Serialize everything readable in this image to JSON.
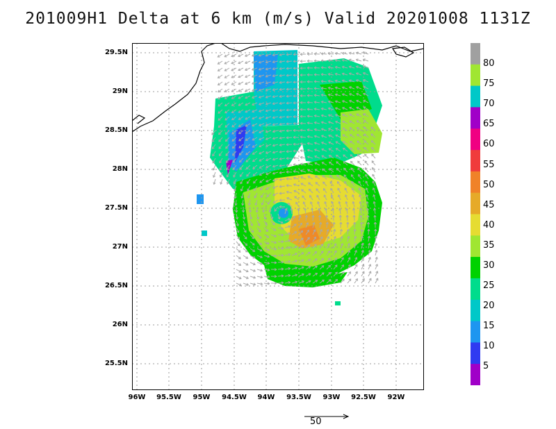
{
  "title": "201009H1 Delta at 6 km (m/s) Valid 20201008 1131Z",
  "lat_labels": [
    "29.5N",
    "29N",
    "28.5N",
    "28N",
    "27.5N",
    "27N",
    "26.5N",
    "26N",
    "25.5N"
  ],
  "lon_labels": [
    "96W",
    "95.5W",
    "95W",
    "94.5W",
    "94W",
    "93.5W",
    "93W",
    "92.5W",
    "92W"
  ],
  "colorbar": {
    "labels": [
      "80",
      "75",
      "70",
      "65",
      "60",
      "55",
      "50",
      "45",
      "40",
      "35",
      "30",
      "25",
      "20",
      "15",
      "10",
      "5"
    ],
    "colors": [
      "#a0a0a0",
      "#a0e632",
      "#00c8c8",
      "#a000c8",
      "#f00082",
      "#f03c3c",
      "#f08228",
      "#e6aa28",
      "#e6dc32",
      "#a0e632",
      "#00d200",
      "#00dc8c",
      "#00c8c8",
      "#1e96f0",
      "#2f3bf1",
      "#a000c8"
    ]
  },
  "scale": {
    "label": "50"
  },
  "colors": {
    "wind_30": "#00d200",
    "wind_25": "#00dc8c",
    "wind_20": "#00c8c8",
    "wind_15": "#1e96f0",
    "wind_10": "#2f3bf1",
    "wind_5": "#a000c8",
    "wind_35": "#a0e632",
    "wind_40": "#e6dc32",
    "wind_45": "#e6aa28",
    "vectors": "#a8a8a8"
  }
}
